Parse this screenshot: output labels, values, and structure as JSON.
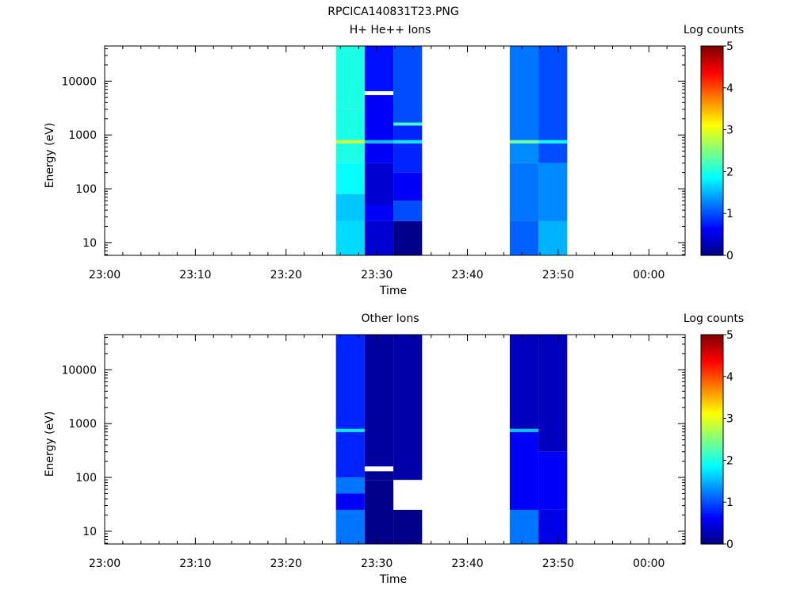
{
  "figure_title": "RPCICA140831T23.PNG",
  "chart_data": [
    {
      "type": "heatmap",
      "title": "H+ He++ Ions",
      "xlabel": "Time",
      "ylabel": "Energy (eV)",
      "yscale": "log",
      "ylim": [
        5.8,
        45000
      ],
      "xlim_minutes": [
        0,
        64
      ],
      "x_tick_labels": [
        "23:00",
        "23:10",
        "23:20",
        "23:30",
        "23:40",
        "23:50",
        "00:00"
      ],
      "y_tick_labels": [
        "10",
        "100",
        "1000",
        "10000"
      ],
      "colorbar": {
        "label": "Log counts",
        "range": [
          0,
          5
        ],
        "tick_labels": [
          "0",
          "1",
          "2",
          "3",
          "4",
          "5"
        ]
      },
      "columns": [
        {
          "time_start": "23:25:30",
          "time_end": "23:28:40",
          "bands": [
            {
              "emin": 5.8,
              "emax": 25,
              "log_counts": 1.7
            },
            {
              "emin": 25,
              "emax": 80,
              "log_counts": 1.6
            },
            {
              "emin": 80,
              "emax": 300,
              "log_counts": 1.9
            },
            {
              "emin": 300,
              "emax": 700,
              "log_counts": 2.0
            },
            {
              "emin": 700,
              "emax": 800,
              "log_counts": 2.9
            },
            {
              "emin": 800,
              "emax": 3000,
              "log_counts": 2.0
            },
            {
              "emin": 3000,
              "emax": 45000,
              "log_counts": 2.0
            }
          ]
        },
        {
          "time_start": "23:28:40",
          "time_end": "23:31:50",
          "bands": [
            {
              "emin": 5.8,
              "emax": 25,
              "log_counts": 0.4
            },
            {
              "emin": 25,
              "emax": 50,
              "log_counts": 0.6
            },
            {
              "emin": 50,
              "emax": 300,
              "log_counts": 0.4
            },
            {
              "emin": 300,
              "emax": 700,
              "log_counts": 0.6
            },
            {
              "emin": 700,
              "emax": 800,
              "log_counts": 1.6
            },
            {
              "emin": 800,
              "emax": 5500,
              "log_counts": 0.6
            },
            {
              "emin": 5500,
              "emax": 6500,
              "log_counts": null
            },
            {
              "emin": 6500,
              "emax": 45000,
              "log_counts": 0.7
            }
          ]
        },
        {
          "time_start": "23:31:50",
          "time_end": "23:35:00",
          "bands": [
            {
              "emin": 5.8,
              "emax": 25,
              "log_counts": 0.05
            },
            {
              "emin": 25,
              "emax": 60,
              "log_counts": 1.0
            },
            {
              "emin": 60,
              "emax": 200,
              "log_counts": 0.6
            },
            {
              "emin": 200,
              "emax": 700,
              "log_counts": 0.8
            },
            {
              "emin": 700,
              "emax": 800,
              "log_counts": 1.8
            },
            {
              "emin": 800,
              "emax": 1500,
              "log_counts": 0.8
            },
            {
              "emin": 1500,
              "emax": 1700,
              "log_counts": 2.2
            },
            {
              "emin": 1700,
              "emax": 45000,
              "log_counts": 1.0
            }
          ]
        },
        {
          "time_start": "23:44:40",
          "time_end": "23:47:50",
          "bands": [
            {
              "emin": 5.8,
              "emax": 25,
              "log_counts": 1.1
            },
            {
              "emin": 25,
              "emax": 300,
              "log_counts": 1.2
            },
            {
              "emin": 300,
              "emax": 700,
              "log_counts": 1.3
            },
            {
              "emin": 700,
              "emax": 800,
              "log_counts": 2.4
            },
            {
              "emin": 800,
              "emax": 45000,
              "log_counts": 1.2
            }
          ]
        },
        {
          "time_start": "23:47:50",
          "time_end": "23:51:00",
          "bands": [
            {
              "emin": 5.8,
              "emax": 25,
              "log_counts": 1.5
            },
            {
              "emin": 25,
              "emax": 300,
              "log_counts": 1.3
            },
            {
              "emin": 300,
              "emax": 700,
              "log_counts": 1.0
            },
            {
              "emin": 700,
              "emax": 800,
              "log_counts": 1.9
            },
            {
              "emin": 800,
              "emax": 45000,
              "log_counts": 1.0
            }
          ]
        }
      ]
    },
    {
      "type": "heatmap",
      "title": "Other Ions",
      "xlabel": "Time",
      "ylabel": "Energy (eV)",
      "yscale": "log",
      "ylim": [
        5.8,
        45000
      ],
      "xlim_minutes": [
        0,
        64
      ],
      "x_tick_labels": [
        "23:00",
        "23:10",
        "23:20",
        "23:30",
        "23:40",
        "23:50",
        "00:00"
      ],
      "y_tick_labels": [
        "10",
        "100",
        "1000",
        "10000"
      ],
      "colorbar": {
        "label": "Log counts",
        "range": [
          0,
          5
        ],
        "tick_labels": [
          "0",
          "1",
          "2",
          "3",
          "4",
          "5"
        ]
      },
      "columns": [
        {
          "time_start": "23:25:30",
          "time_end": "23:28:40",
          "bands": [
            {
              "emin": 5.8,
              "emax": 25,
              "log_counts": 1.2
            },
            {
              "emin": 25,
              "emax": 50,
              "log_counts": 0.6
            },
            {
              "emin": 50,
              "emax": 100,
              "log_counts": 1.2
            },
            {
              "emin": 100,
              "emax": 700,
              "log_counts": 0.8
            },
            {
              "emin": 700,
              "emax": 800,
              "log_counts": 1.8
            },
            {
              "emin": 800,
              "emax": 45000,
              "log_counts": 0.8
            }
          ]
        },
        {
          "time_start": "23:28:40",
          "time_end": "23:31:50",
          "bands": [
            {
              "emin": 5.8,
              "emax": 90,
              "log_counts": 0.05
            },
            {
              "emin": 90,
              "emax": 130,
              "log_counts": 0.1
            },
            {
              "emin": 130,
              "emax": 160,
              "log_counts": null
            },
            {
              "emin": 160,
              "emax": 45000,
              "log_counts": 0.15
            }
          ]
        },
        {
          "time_start": "23:31:50",
          "time_end": "23:35:00",
          "bands": [
            {
              "emin": 5.8,
              "emax": 25,
              "log_counts": 0.05
            },
            {
              "emin": 25,
              "emax": 90,
              "log_counts": null
            },
            {
              "emin": 90,
              "emax": 45000,
              "log_counts": 0.2
            }
          ]
        },
        {
          "time_start": "23:44:40",
          "time_end": "23:47:50",
          "bands": [
            {
              "emin": 5.8,
              "emax": 25,
              "log_counts": 1.2
            },
            {
              "emin": 25,
              "emax": 700,
              "log_counts": 0.6
            },
            {
              "emin": 700,
              "emax": 800,
              "log_counts": 1.6
            },
            {
              "emin": 800,
              "emax": 45000,
              "log_counts": 0.3
            }
          ]
        },
        {
          "time_start": "23:47:50",
          "time_end": "23:51:00",
          "bands": [
            {
              "emin": 5.8,
              "emax": 25,
              "log_counts": 0.5
            },
            {
              "emin": 25,
              "emax": 300,
              "log_counts": 0.6
            },
            {
              "emin": 300,
              "emax": 45000,
              "log_counts": 0.3
            }
          ]
        }
      ]
    }
  ]
}
